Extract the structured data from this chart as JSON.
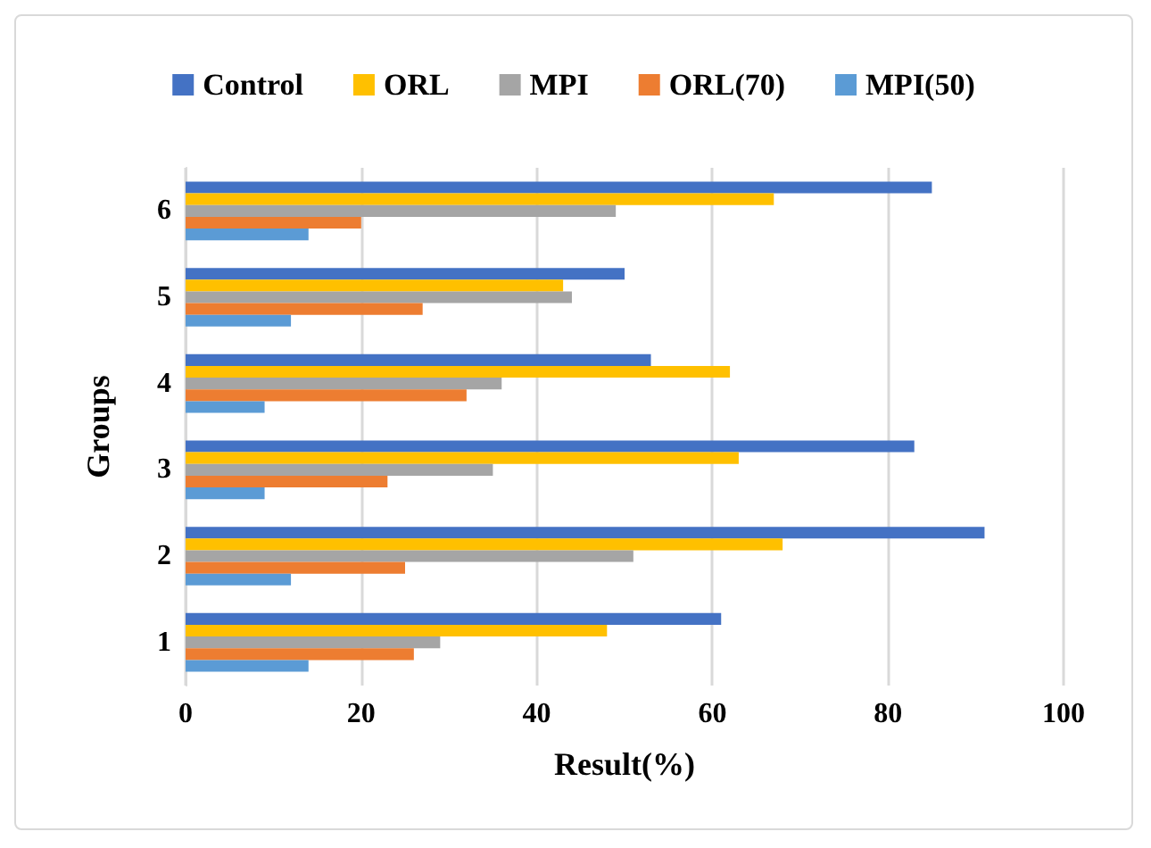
{
  "chart_data": {
    "type": "bar",
    "orientation": "horizontal",
    "xlabel": "Result(%)",
    "ylabel": "Groups",
    "categories": [
      "6",
      "5",
      "4",
      "3",
      "2",
      "1"
    ],
    "series": [
      {
        "name": "Control",
        "color": "#4472c4",
        "values": [
          85,
          50,
          53,
          83,
          91,
          61
        ]
      },
      {
        "name": "ORL",
        "color": "#ffc000",
        "values": [
          67,
          43,
          62,
          63,
          68,
          48
        ]
      },
      {
        "name": "MPI",
        "color": "#a5a5a5",
        "values": [
          49,
          44,
          36,
          35,
          51,
          29
        ]
      },
      {
        "name": "ORL(70)",
        "color": "#ed7d31",
        "values": [
          20,
          27,
          32,
          23,
          25,
          26
        ]
      },
      {
        "name": "MPI(50)",
        "color": "#5b9bd5",
        "values": [
          14,
          12,
          9,
          9,
          12,
          14
        ]
      }
    ],
    "xlim": [
      0,
      100
    ],
    "xticks": [
      0,
      20,
      40,
      60,
      80,
      100
    ],
    "grid": "x",
    "legend": "top"
  }
}
